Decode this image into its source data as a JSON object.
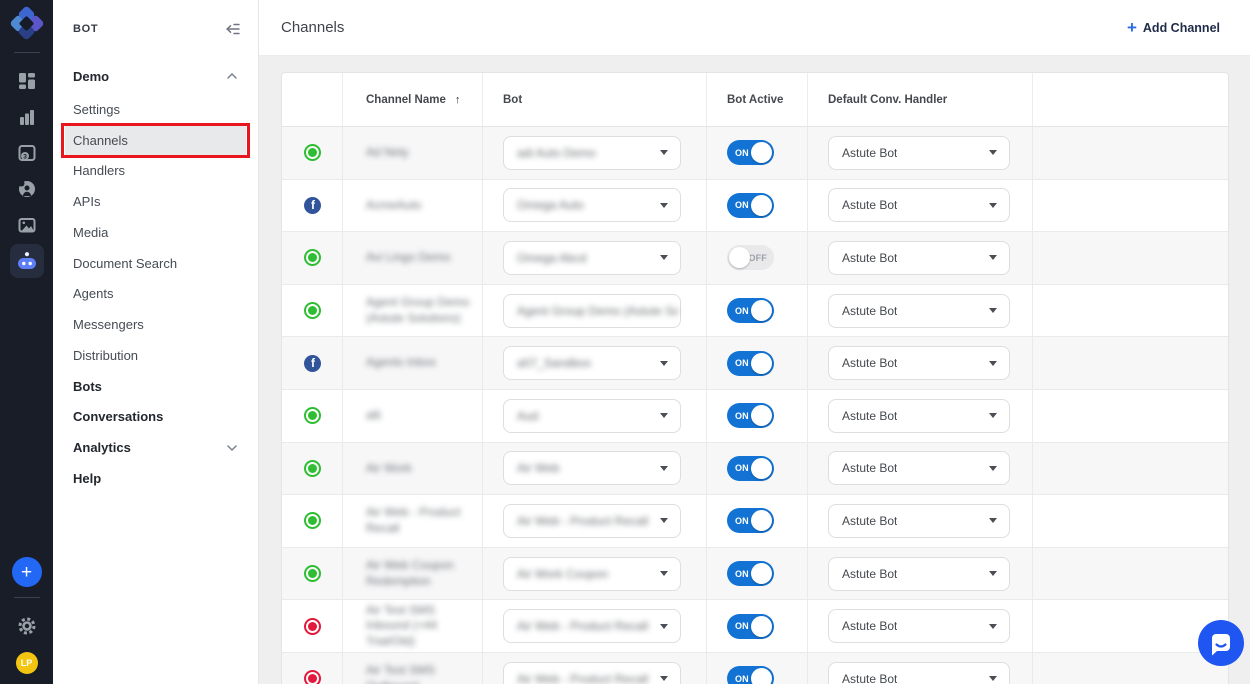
{
  "rail": {
    "logo_name": "app-logo",
    "icons": [
      {
        "name": "dashboard-grid-icon",
        "active": false
      },
      {
        "name": "analytics-bars-icon",
        "active": false
      },
      {
        "name": "calendar-version-icon",
        "active": false
      },
      {
        "name": "support-donut-icon",
        "active": false
      },
      {
        "name": "media-image-icon",
        "active": false
      },
      {
        "name": "bots-robot-icon",
        "active": true
      }
    ],
    "add_button_label": "+",
    "avatar_initials": "LP"
  },
  "sidebar": {
    "workspace_label": "BOT",
    "section": {
      "label": "Demo",
      "chevron": "up"
    },
    "items": [
      {
        "label": "Settings"
      },
      {
        "label": "Channels",
        "selected": true,
        "annotated": true
      },
      {
        "label": "Handlers"
      },
      {
        "label": "APIs"
      },
      {
        "label": "Media"
      },
      {
        "label": "Document Search"
      },
      {
        "label": "Agents"
      },
      {
        "label": "Messengers"
      },
      {
        "label": "Distribution"
      },
      {
        "label": "Bots",
        "bold": true
      },
      {
        "label": "Conversations",
        "bold": true
      },
      {
        "label": "Analytics",
        "bold": true,
        "chevron": "down"
      },
      {
        "label": "Help",
        "bold": true
      }
    ]
  },
  "header": {
    "title": "Channels",
    "add_channel_plus": "+",
    "add_channel_label": "Add Channel"
  },
  "table": {
    "columns": [
      "",
      "Channel Name",
      "Bot",
      "Bot Active",
      "Default Conv. Handler",
      ""
    ],
    "sort_arrow": "↑",
    "sorted_column": "Channel Name",
    "toggle_on_label": "ON",
    "toggle_off_label": "OFF",
    "rows": [
      {
        "status": "green",
        "name": "Ad Nety",
        "bot": "adi Auto Demo",
        "bot_caret": true,
        "active": true,
        "handler": "Astute Bot",
        "redacted": true
      },
      {
        "status": "facebook",
        "name": "AcmeAuto",
        "bot": "Omega Auto",
        "bot_caret": true,
        "active": true,
        "handler": "Astute Bot",
        "redacted": true
      },
      {
        "status": "green",
        "name": "Avi Lingo Demo",
        "bot": "Omega Abcd",
        "bot_caret": true,
        "active": false,
        "handler": "Astute Bot",
        "redacted": true
      },
      {
        "status": "green",
        "name": "Agent Group Demo (Astute Solutions)",
        "bot": "Agent Group Demo (Astute Sales",
        "bot_caret": false,
        "active": true,
        "handler": "Astute Bot",
        "redacted": true
      },
      {
        "status": "facebook",
        "name": "Agents Inbox",
        "bot": "a07_Sandbox",
        "bot_caret": true,
        "active": true,
        "handler": "Astute Bot",
        "redacted": true
      },
      {
        "status": "green",
        "name": "alli",
        "bot": "Aud",
        "bot_caret": true,
        "active": true,
        "handler": "Astute Bot",
        "redacted": true
      },
      {
        "status": "green",
        "name": "Air Work",
        "bot": "Air Web",
        "bot_caret": true,
        "active": true,
        "handler": "Astute Bot",
        "redacted": true
      },
      {
        "status": "green",
        "name": "Air Web - Product Recall",
        "bot": "Air Web - Product Recall",
        "bot_caret": true,
        "active": true,
        "handler": "Astute Bot",
        "redacted": true
      },
      {
        "status": "green",
        "name": "Air Web Coupon Redemption",
        "bot": "Air Work Coupon",
        "bot_caret": true,
        "active": true,
        "handler": "Astute Bot",
        "redacted": true
      },
      {
        "status": "red",
        "name": "Air Test SMS Inbound (+44 Trial/Old)",
        "bot": "Air Web - Product Recall",
        "bot_caret": true,
        "active": true,
        "handler": "Astute Bot",
        "redacted": true
      },
      {
        "status": "red",
        "name": "Air Test SMS Outbound",
        "bot": "Air Web - Product Recall",
        "bot_caret": true,
        "active": true,
        "handler": "Astute Bot",
        "redacted": true
      }
    ]
  },
  "colors": {
    "rail_bg": "#181d27",
    "accent_blue": "#2e6ce6",
    "toggle_on_blue": "#1273d4",
    "status_green": "#2fbe33",
    "status_red": "#e2183d",
    "facebook_blue": "#31549b",
    "avatar_yellow": "#f2c511",
    "chat_bubble_blue": "#1f55f0",
    "annotation_red": "#e8161d",
    "selected_item_bg": "#e8e9ea"
  }
}
